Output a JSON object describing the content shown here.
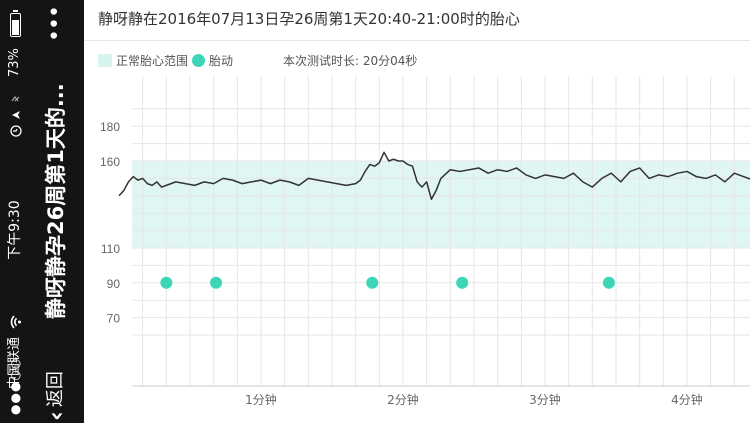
{
  "status_bar": {
    "signal": "●●●○○",
    "carrier": "中国联通",
    "wifi_icon": "wifi-icon",
    "time": "下午9:30",
    "battery_pct": "73%",
    "battery_level": 0.73
  },
  "nav": {
    "back_label": "返回",
    "title": "静呀静孕26周第1天的..."
  },
  "chart_title": "静呀静在2016年07月13日孕26周第1天20:40-21:00时的胎心",
  "legend": {
    "normal_range_label": "正常胎心范围",
    "movement_label": "胎动",
    "duration_label": "本次测试时长: 20分04秒"
  },
  "colors": {
    "normal_band": "#d6f3ee",
    "movement_dot": "#3cd6b6",
    "line": "#333333",
    "grid": "#e6e6e6"
  },
  "chart_data": {
    "type": "line",
    "y_ticks": [
      180,
      160,
      110,
      90,
      70
    ],
    "x_ticks": [
      {
        "label": "1分钟",
        "t": 60
      },
      {
        "label": "2分钟",
        "t": 120
      },
      {
        "label": "3分钟",
        "t": 180
      },
      {
        "label": "4分钟",
        "t": 240
      }
    ],
    "normal_range": [
      110,
      160
    ],
    "movement_y": 90,
    "movements_t": [
      20,
      41,
      107,
      145,
      207
    ],
    "fhr": {
      "t": [
        0,
        2,
        4,
        6,
        8,
        10,
        12,
        14,
        16,
        18,
        20,
        24,
        28,
        32,
        36,
        40,
        44,
        48,
        52,
        56,
        60,
        64,
        68,
        72,
        76,
        80,
        84,
        88,
        92,
        96,
        100,
        102,
        104,
        106,
        108,
        110,
        112,
        114,
        116,
        118,
        120,
        122,
        124,
        126,
        128,
        130,
        132,
        134,
        136,
        140,
        144,
        148,
        152,
        156,
        160,
        164,
        168,
        172,
        176,
        180,
        184,
        188,
        192,
        196,
        200,
        204,
        208,
        212,
        216,
        220,
        224,
        228,
        232,
        236,
        240,
        244,
        248,
        252,
        256,
        260,
        264,
        268
      ],
      "bpm": [
        140,
        143,
        148,
        151,
        149,
        150,
        147,
        146,
        148,
        145,
        146,
        148,
        147,
        146,
        148,
        147,
        150,
        149,
        147,
        148,
        149,
        147,
        149,
        148,
        146,
        150,
        149,
        148,
        147,
        146,
        147,
        149,
        154,
        158,
        157,
        159,
        165,
        160,
        161,
        160,
        160,
        158,
        157,
        148,
        145,
        148,
        138,
        143,
        150,
        155,
        154,
        155,
        156,
        153,
        155,
        154,
        156,
        152,
        150,
        152,
        151,
        150,
        153,
        148,
        145,
        150,
        153,
        148,
        154,
        156,
        150,
        152,
        151,
        153,
        154,
        151,
        150,
        152,
        148,
        153,
        151,
        149
      ]
    },
    "x_range": [
      0,
      268
    ],
    "y_range": [
      50,
      194
    ]
  }
}
